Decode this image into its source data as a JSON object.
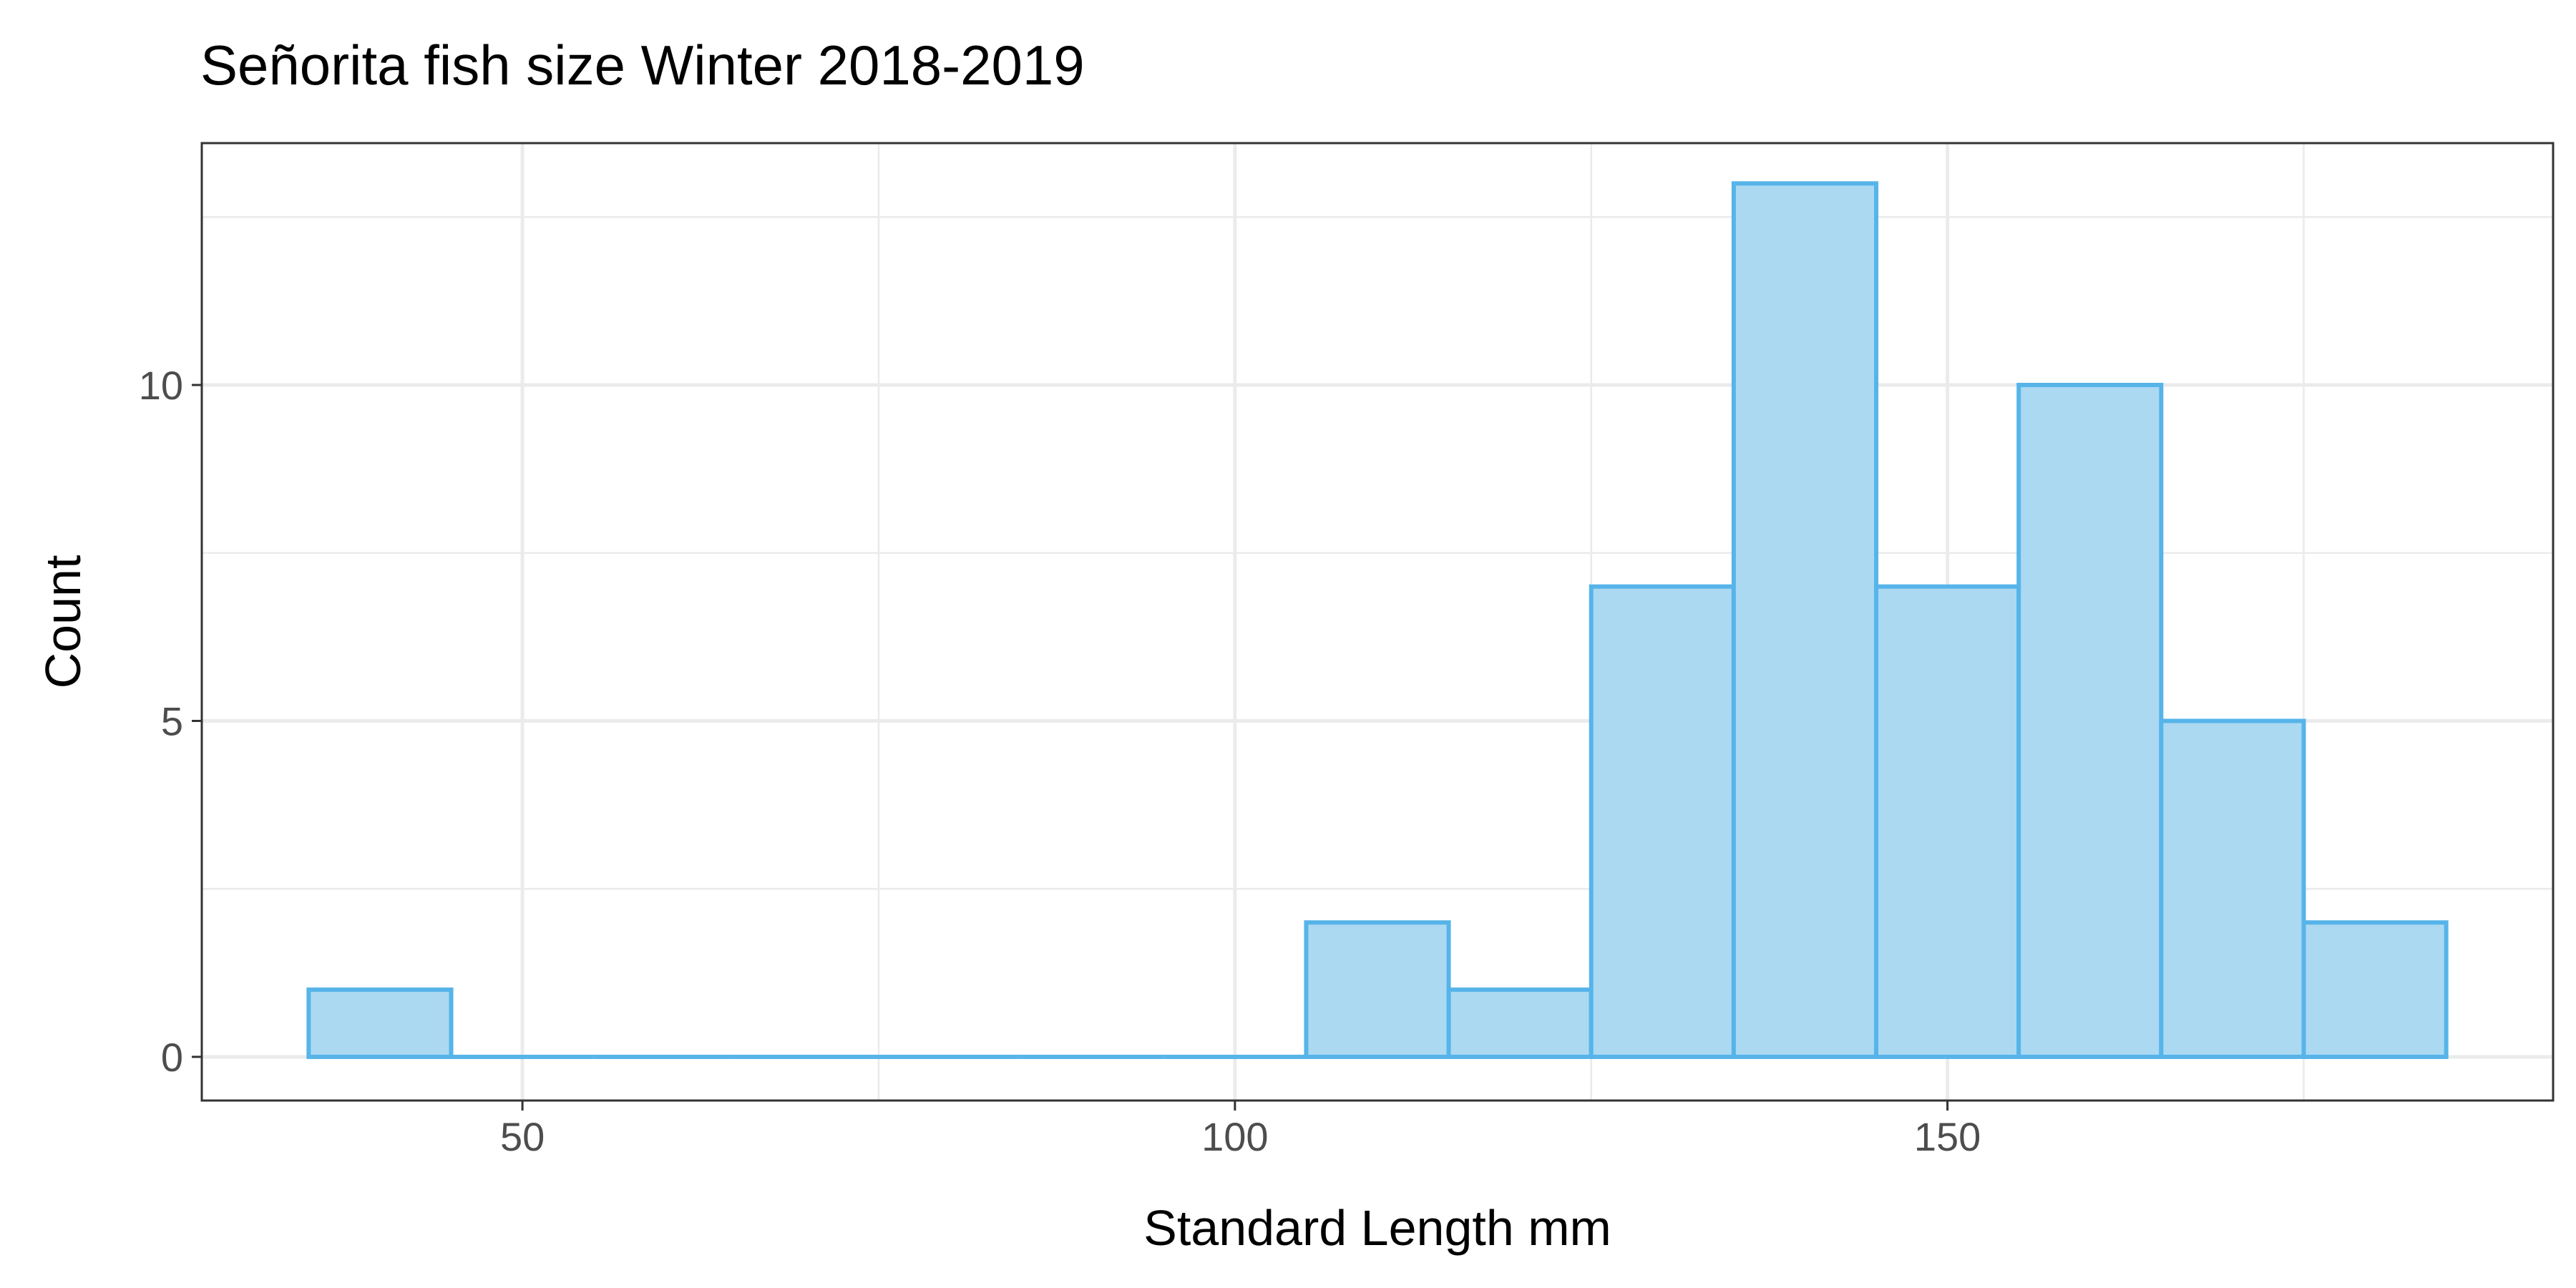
{
  "chart_data": {
    "type": "bar",
    "title": "Señorita fish size Winter 2018-2019",
    "xlabel": "Standard Length mm",
    "ylabel": "Count",
    "xlim": [
      27.5,
      192.5
    ],
    "ylim": [
      -0.65,
      13.6
    ],
    "x_ticks": [
      50,
      100,
      150
    ],
    "y_ticks": [
      0,
      5,
      10
    ],
    "bin_width": 10,
    "bins": [
      {
        "x0": 35,
        "x1": 45,
        "count": 1
      },
      {
        "x0": 45,
        "x1": 55,
        "count": 0
      },
      {
        "x0": 55,
        "x1": 65,
        "count": 0
      },
      {
        "x0": 65,
        "x1": 75,
        "count": 0
      },
      {
        "x0": 75,
        "x1": 85,
        "count": 0
      },
      {
        "x0": 85,
        "x1": 95,
        "count": 0
      },
      {
        "x0": 95,
        "x1": 105,
        "count": 0
      },
      {
        "x0": 105,
        "x1": 115,
        "count": 2
      },
      {
        "x0": 115,
        "x1": 125,
        "count": 1
      },
      {
        "x0": 125,
        "x1": 135,
        "count": 7
      },
      {
        "x0": 135,
        "x1": 145,
        "count": 13
      },
      {
        "x0": 145,
        "x1": 155,
        "count": 7
      },
      {
        "x0": 155,
        "x1": 165,
        "count": 10
      },
      {
        "x0": 165,
        "x1": 175,
        "count": 5
      },
      {
        "x0": 175,
        "x1": 185,
        "count": 2
      }
    ],
    "grid": true,
    "colors": {
      "fill": "#abd9f2",
      "outline": "#56b4e9",
      "panel_border": "#333333"
    }
  }
}
